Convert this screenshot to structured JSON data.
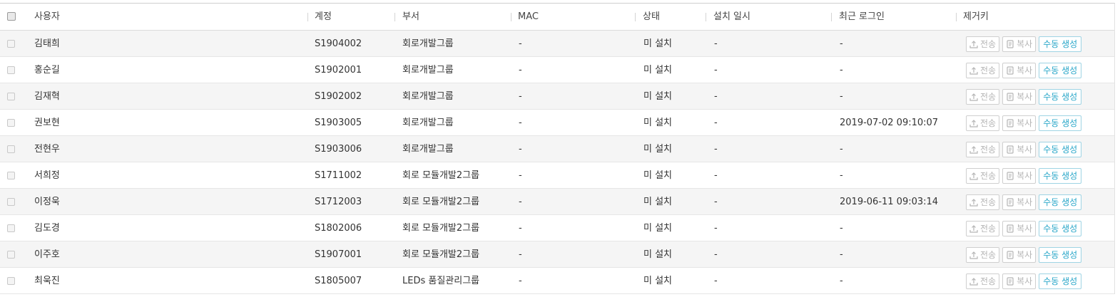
{
  "columns": {
    "user": "사용자",
    "account": "계정",
    "dept": "부서",
    "mac": "MAC",
    "status": "상태",
    "install_date": "설치 일시",
    "last_login": "최근 로그인",
    "remover": "제거키"
  },
  "buttons": {
    "send": "전송",
    "copy": "복사",
    "generate": "수동 생성"
  },
  "rows": [
    {
      "user": "김태희",
      "account": "S1904002",
      "dept": "회로개발그룹",
      "mac": "-",
      "status": "미 설치",
      "install_date": "-",
      "last_login": "-"
    },
    {
      "user": "홍순길",
      "account": "S1902001",
      "dept": "회로개발그룹",
      "mac": "-",
      "status": "미 설치",
      "install_date": "-",
      "last_login": "-"
    },
    {
      "user": "김재혁",
      "account": "S1902002",
      "dept": "회로개발그룹",
      "mac": "-",
      "status": "미 설치",
      "install_date": "-",
      "last_login": "-"
    },
    {
      "user": "권보현",
      "account": "S1903005",
      "dept": "회로개발그룹",
      "mac": "-",
      "status": "미 설치",
      "install_date": "-",
      "last_login": "2019-07-02 09:10:07"
    },
    {
      "user": "전현우",
      "account": "S1903006",
      "dept": "회로개발그룹",
      "mac": "-",
      "status": "미 설치",
      "install_date": "-",
      "last_login": "-"
    },
    {
      "user": "서희정",
      "account": "S1711002",
      "dept": "회로 모듈개발2그룹",
      "mac": "-",
      "status": "미 설치",
      "install_date": "-",
      "last_login": "-"
    },
    {
      "user": "이정욱",
      "account": "S1712003",
      "dept": "회로 모듈개발2그룹",
      "mac": "-",
      "status": "미 설치",
      "install_date": "-",
      "last_login": "2019-06-11 09:03:14"
    },
    {
      "user": "김도경",
      "account": "S1802006",
      "dept": "회로 모듈개발2그룹",
      "mac": "-",
      "status": "미 설치",
      "install_date": "-",
      "last_login": "-"
    },
    {
      "user": "이주호",
      "account": "S1907001",
      "dept": "회로 모듈개발2그룹",
      "mac": "-",
      "status": "미 설치",
      "install_date": "-",
      "last_login": "-"
    },
    {
      "user": "최욱진",
      "account": "S1805007",
      "dept": "LEDs 품질관리그룹",
      "mac": "-",
      "status": "미 설치",
      "install_date": "-",
      "last_login": "-"
    }
  ]
}
